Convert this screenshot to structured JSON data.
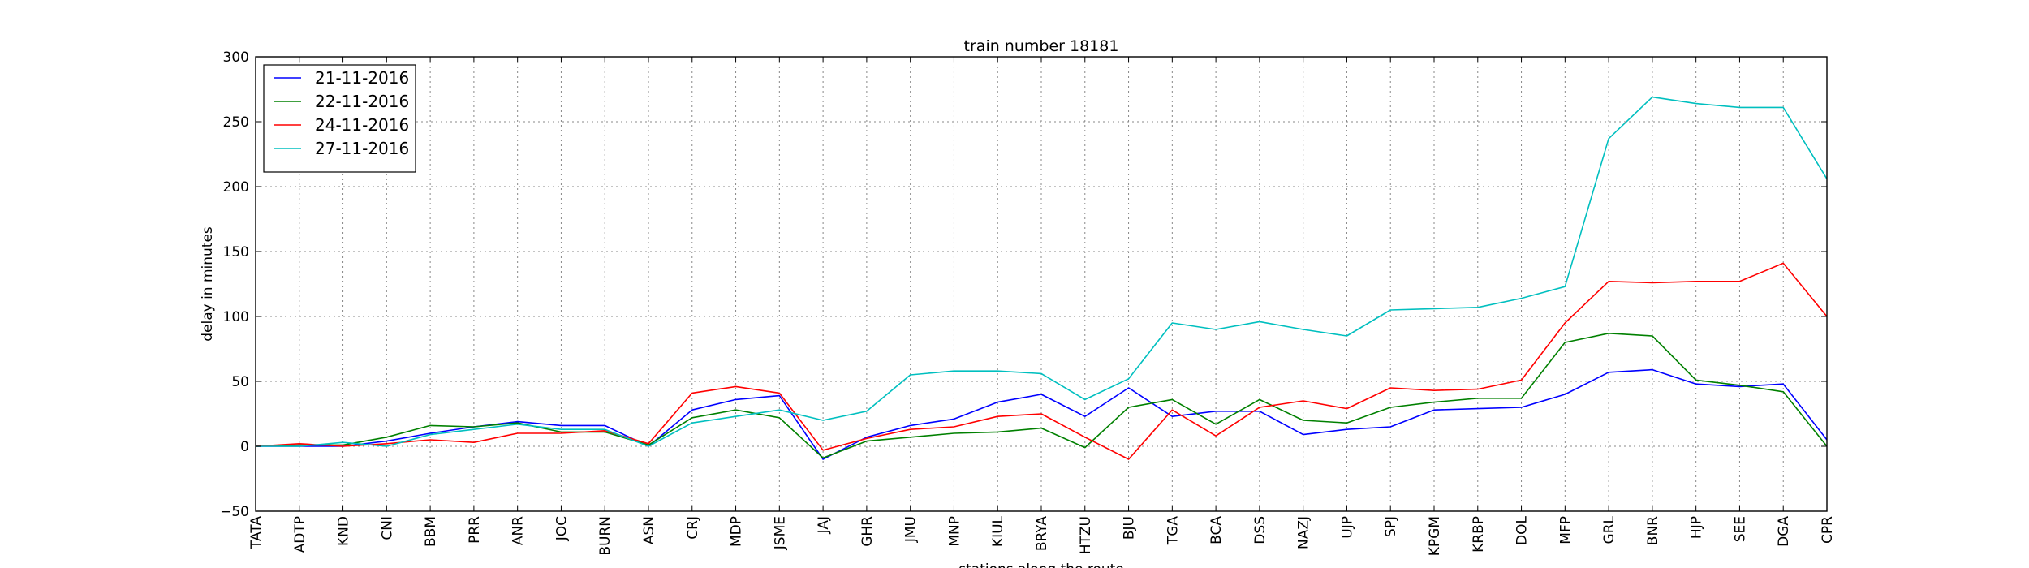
{
  "chart_data": {
    "type": "line",
    "title": "train number 18181",
    "xlabel": "stations along the route",
    "ylabel": "delay in minutes",
    "ylim": [
      -50,
      300
    ],
    "yticks": [
      -50,
      0,
      50,
      100,
      150,
      200,
      250,
      300
    ],
    "grid": true,
    "legend_position": "top-left",
    "categories": [
      "TATA",
      "ADTP",
      "KND",
      "CNI",
      "BBM",
      "PRR",
      "ANR",
      "JOC",
      "BURN",
      "ASN",
      "CRJ",
      "MDP",
      "JSME",
      "JAJ",
      "GHR",
      "JMU",
      "MNP",
      "KIUL",
      "BRYA",
      "HTZU",
      "BJU",
      "TGA",
      "BCA",
      "DSS",
      "NAZJ",
      "UJP",
      "SPJ",
      "KPGM",
      "KRBP",
      "DOL",
      "MFP",
      "GRL",
      "BNR",
      "HJP",
      "SEE",
      "DGA",
      "CPR"
    ],
    "series": [
      {
        "name": "21-11-2016",
        "color": "#0000ff",
        "values": [
          0,
          0,
          0,
          4,
          10,
          15,
          19,
          16,
          16,
          0,
          28,
          36,
          39,
          -10,
          7,
          16,
          21,
          34,
          40,
          23,
          45,
          23,
          27,
          27,
          9,
          13,
          15,
          28,
          29,
          30,
          40,
          57,
          59,
          48,
          46,
          48,
          5
        ]
      },
      {
        "name": "22-11-2016",
        "color": "#008000",
        "values": [
          0,
          1,
          1,
          7,
          16,
          15,
          18,
          11,
          11,
          1,
          22,
          28,
          22,
          -9,
          4,
          7,
          10,
          11,
          14,
          -1,
          30,
          36,
          17,
          36,
          20,
          18,
          30,
          34,
          37,
          37,
          80,
          87,
          85,
          51,
          47,
          42,
          0
        ]
      },
      {
        "name": "24-11-2016",
        "color": "#ff0000",
        "values": [
          0,
          2,
          0,
          2,
          5,
          3,
          10,
          10,
          12,
          2,
          41,
          46,
          41,
          -3,
          6,
          13,
          15,
          23,
          25,
          7,
          -10,
          28,
          8,
          30,
          35,
          29,
          45,
          43,
          44,
          51,
          95,
          127,
          126,
          127,
          127,
          141,
          100
        ]
      },
      {
        "name": "27-11-2016",
        "color": "#00bfbf",
        "values": [
          0,
          0,
          3,
          0,
          9,
          13,
          17,
          13,
          13,
          0,
          18,
          23,
          28,
          20,
          27,
          55,
          58,
          58,
          56,
          36,
          52,
          95,
          90,
          96,
          90,
          85,
          105,
          106,
          107,
          114,
          123,
          237,
          269,
          264,
          261,
          261,
          206
        ]
      }
    ]
  }
}
